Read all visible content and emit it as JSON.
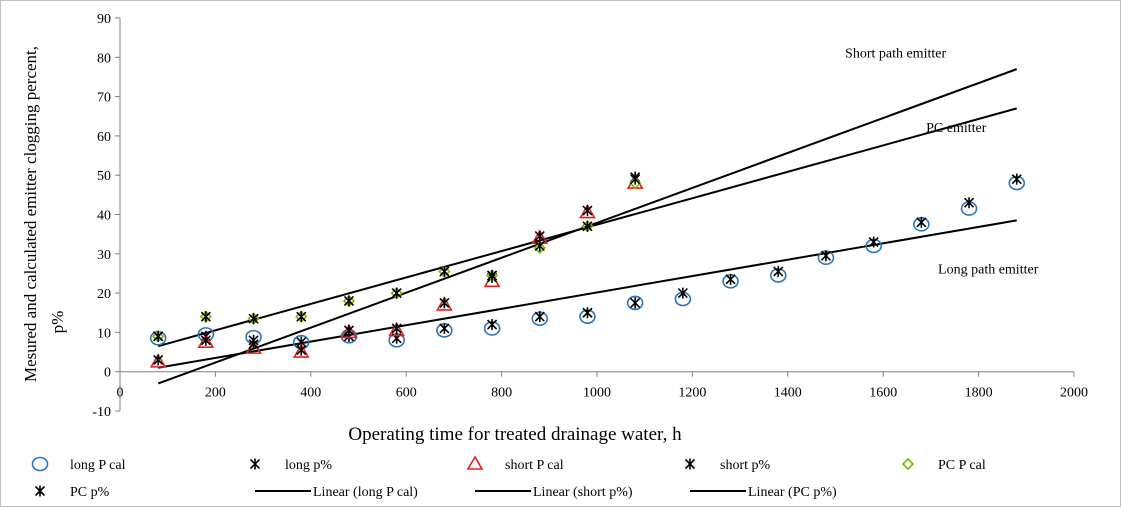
{
  "chart_data": {
    "type": "scatter",
    "title": "",
    "xlabel": "Operating time for treated drainage water, h",
    "ylabel_line1": "Mesured and calculated emitter clogging percent,",
    "ylabel_line2": "p%",
    "xlim": [
      0,
      2000
    ],
    "ylim": [
      -10,
      90
    ],
    "xticks": [
      0,
      200,
      400,
      600,
      800,
      1000,
      1200,
      1400,
      1600,
      1800,
      2000
    ],
    "yticks": [
      -10,
      0,
      10,
      20,
      30,
      40,
      50,
      60,
      70,
      80,
      90
    ],
    "grid": false,
    "legend_position": "bottom",
    "series": [
      {
        "name": "long P cal",
        "marker": "circle",
        "color": "#2e75b6",
        "x": [
          80,
          180,
          280,
          380,
          480,
          580,
          680,
          780,
          880,
          980,
          1080,
          1180,
          1280,
          1380,
          1480,
          1580,
          1680,
          1780,
          1880
        ],
        "y": [
          8.5,
          9.5,
          8.8,
          7.5,
          9,
          8,
          10.5,
          11,
          13.5,
          14,
          17.5,
          18.5,
          23,
          24.5,
          29,
          32,
          37.5,
          41.5,
          48
        ]
      },
      {
        "name": "long p%",
        "marker": "star",
        "color": "#000000",
        "x": [
          80,
          180,
          280,
          380,
          480,
          580,
          680,
          780,
          880,
          980,
          1080,
          1180,
          1280,
          1380,
          1480,
          1580,
          1680,
          1780,
          1880
        ],
        "y": [
          9,
          9,
          8,
          7.5,
          9,
          8.5,
          11,
          12,
          14,
          15,
          17.5,
          20,
          23.5,
          25.5,
          29.5,
          33,
          38,
          43,
          49
        ]
      },
      {
        "name": "short P cal",
        "marker": "triangle",
        "color": "#e02020",
        "x": [
          80,
          180,
          280,
          380,
          480,
          580,
          680,
          780,
          880,
          980,
          1080
        ],
        "y": [
          2.5,
          7.5,
          6,
          5,
          10,
          10.5,
          17,
          23,
          34,
          40.5,
          48
        ]
      },
      {
        "name": "short p%",
        "marker": "star",
        "color": "#000000",
        "x": [
          80,
          180,
          280,
          380,
          480,
          580,
          680,
          780,
          880,
          980,
          1080
        ],
        "y": [
          3,
          8,
          7,
          5.5,
          10.5,
          11,
          17.5,
          24,
          34.5,
          41,
          49.5
        ]
      },
      {
        "name": "PC P cal",
        "marker": "diamond",
        "color": "#7ab800",
        "x": [
          80,
          180,
          280,
          380,
          480,
          580,
          680,
          780,
          880,
          980,
          1080
        ],
        "y": [
          9,
          14,
          13.5,
          14,
          18,
          20,
          25.5,
          24.5,
          31.5,
          37,
          48
        ]
      },
      {
        "name": "PC p%",
        "marker": "star",
        "color": "#000000",
        "x": [
          80,
          180,
          280,
          380,
          480,
          580,
          680,
          780,
          880,
          980,
          1080
        ],
        "y": [
          9,
          14,
          13.5,
          14,
          18,
          20,
          25.5,
          24.5,
          32,
          37,
          49
        ]
      }
    ],
    "trendlines": [
      {
        "name": "Linear (long P cal)",
        "x": [
          80,
          1880
        ],
        "y": [
          1,
          38.5
        ],
        "color": "#000000"
      },
      {
        "name": "Linear (short p%)",
        "x": [
          80,
          1880
        ],
        "y": [
          -3,
          77
        ],
        "color": "#000000"
      },
      {
        "name": "Linear (PC p%)",
        "x": [
          80,
          1880
        ],
        "y": [
          6.5,
          67
        ],
        "color": "#000000"
      }
    ],
    "annotations": [
      {
        "text": "Short path emitter",
        "x": 1520,
        "y": 80
      },
      {
        "text": "PC emitter",
        "x": 1690,
        "y": 61
      },
      {
        "text": "Long path emitter",
        "x": 1715,
        "y": 25
      }
    ]
  }
}
